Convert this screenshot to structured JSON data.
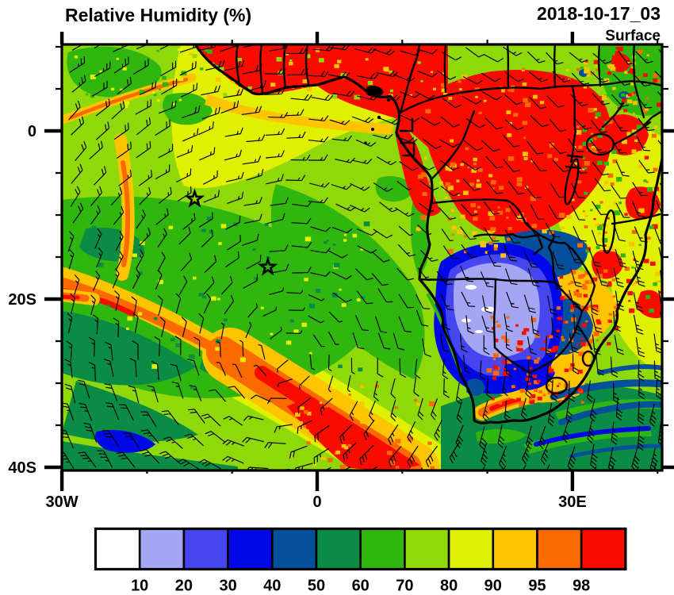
{
  "header": {
    "title": "Relative Humidity (%)",
    "datetime": "2018-10-17_03",
    "level": "Surface"
  },
  "chart_data": {
    "type": "heatmap",
    "title": "Relative Humidity (%)",
    "datetime": "2018-10-17_03",
    "level": "Surface",
    "units": "%",
    "projection": "lat-lon map of Africa and South Atlantic",
    "lon_range_deg": [
      -30,
      40.5
    ],
    "lat_range_deg": [
      10.3,
      -40.6
    ],
    "axes": {
      "x_ticks": [
        {
          "label": "30W",
          "lon_deg": -30
        },
        {
          "label": "0",
          "lon_deg": 0
        },
        {
          "label": "30E",
          "lon_deg": 30
        }
      ],
      "y_ticks": [
        {
          "label": "0",
          "lat_deg": 0
        },
        {
          "label": "20S",
          "lat_deg": -20
        },
        {
          "label": "40S",
          "lat_deg": -40
        }
      ],
      "x_minor_step_deg": 10,
      "y_minor_step_deg": 5,
      "grid": false
    },
    "colorbar": {
      "tick_labels": [
        "10",
        "20",
        "30",
        "40",
        "50",
        "60",
        "70",
        "80",
        "90",
        "95",
        "98"
      ],
      "level_keys": [
        "lt10",
        "10-20",
        "20-30",
        "30-40",
        "40-50",
        "50-60",
        "60-70",
        "70-80",
        "80-90",
        "90-95",
        "95-98",
        "gt98"
      ],
      "colors": [
        "#FFFFFF",
        "#A5A5F5",
        "#4646F0",
        "#0008E8",
        "#05509B",
        "#0A8C44",
        "#2FB60F",
        "#8FD90B",
        "#E0F000",
        "#FFC400",
        "#FB6A00",
        "#F90B00"
      ],
      "position": "bottom"
    },
    "overlays": {
      "wind_barbs": true,
      "coastlines": true,
      "country_borders": true,
      "markers": [
        {
          "symbol": "star",
          "lon": "14.4W",
          "lat": "8.1S"
        },
        {
          "symbol": "star",
          "lon": "5.8W",
          "lat": "16.2S"
        }
      ]
    },
    "regions": [
      {
        "area": "West African Guinea-coast land strip",
        "rh_percent": ">98"
      },
      {
        "area": "Congo Basin / central Africa",
        "rh_percent": ">98"
      },
      {
        "area": "Namibia-Botswana Kalahari core",
        "rh_percent": "10-20, locally <10"
      },
      {
        "area": "Ring around Kalahari core",
        "rh_percent": "20-50"
      },
      {
        "area": "Zambia / Zimbabwe patches",
        "rh_percent": "40-50"
      },
      {
        "area": "South Atlantic subtropical ocean",
        "rh_percent": "60-90"
      },
      {
        "area": "Diagonal frontal band over SW ocean",
        "rh_percent": "95 to >98"
      },
      {
        "area": "Southeast ocean south of South Africa",
        "rh_percent": "30-60"
      },
      {
        "area": "East Africa",
        "rh_percent": "mixed 60 to >98"
      },
      {
        "area": "South Africa interior / Mozambique border",
        "rh_percent": "90 to >98 patches"
      }
    ]
  }
}
